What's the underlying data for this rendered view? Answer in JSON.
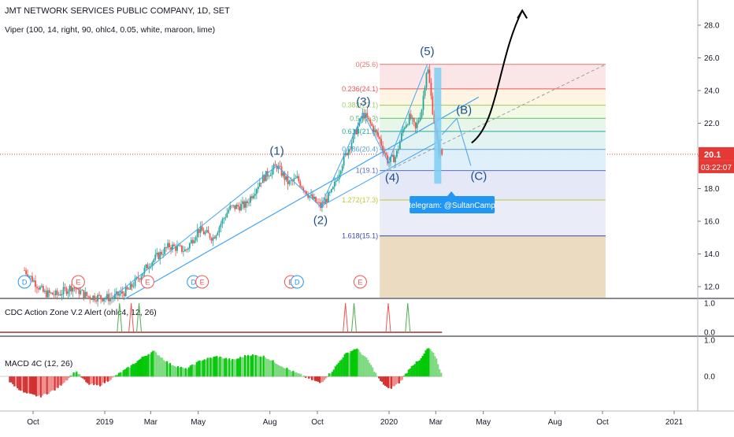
{
  "header": {
    "title": "JMT NETWORK SERVICES PUBLIC COMPANY, 1D, SET",
    "indicator": "Viper (100, 14, right, 90, ohlc4, 0.05, white, maroon, lime)"
  },
  "price_badge": {
    "value": "20.1",
    "countdown": "03:22:07",
    "color": "#e53935"
  },
  "colors": {
    "up": "#26a69a",
    "down": "#ef5350",
    "wave_line": "#42a5f5",
    "wave_label": "#1e4f8c",
    "label_bg": "#2196f3",
    "arrow": "#000000"
  },
  "chart_data": [
    {
      "type": "candlestick",
      "title": "JMT NETWORK SERVICES PUBLIC COMPANY, 1D, SET",
      "ylim": [
        11.3,
        29.5
      ],
      "y_ticks": [
        "28.0",
        "26.0",
        "24.0",
        "22.0",
        "20.0",
        "18.0",
        "16.0",
        "14.0",
        "12.0"
      ],
      "x_ticks": [
        "Oct",
        "2019",
        "Mar",
        "May",
        "Aug",
        "Oct",
        "2020",
        "Mar",
        "May",
        "Aug",
        "Oct",
        "2021"
      ],
      "last_price": 20.1,
      "price_path": [
        [
          "2018-09-20",
          13.0
        ],
        [
          "2018-10-01",
          12.4
        ],
        [
          "2018-10-15",
          11.6
        ],
        [
          "2018-11-01",
          11.5
        ],
        [
          "2018-11-20",
          12.0
        ],
        [
          "2018-12-10",
          11.4
        ],
        [
          "2019-01-10",
          11.3
        ],
        [
          "2019-02-01",
          11.8
        ],
        [
          "2019-03-01",
          13.5
        ],
        [
          "2019-03-25",
          14.5
        ],
        [
          "2019-04-15",
          14.2
        ],
        [
          "2019-05-01",
          15.5
        ],
        [
          "2019-05-20",
          15.0
        ],
        [
          "2019-06-10",
          16.8
        ],
        [
          "2019-07-01",
          17.0
        ],
        [
          "2019-07-20",
          18.5
        ],
        [
          "2019-08-10",
          19.4
        ],
        [
          "2019-08-25",
          18.3
        ],
        [
          "2019-09-05",
          18.6
        ],
        [
          "2019-09-20",
          17.6
        ],
        [
          "2019-10-05",
          16.9
        ],
        [
          "2019-10-20",
          17.8
        ],
        [
          "2019-11-01",
          19.5
        ],
        [
          "2019-11-15",
          21.0
        ],
        [
          "2019-11-29",
          22.6
        ],
        [
          "2019-12-10",
          21.8
        ],
        [
          "2019-12-20",
          21.0
        ],
        [
          "2019-12-31",
          19.6
        ],
        [
          "2020-01-10",
          20.0
        ],
        [
          "2020-01-20",
          21.8
        ],
        [
          "2020-01-28",
          22.4
        ],
        [
          "2020-02-04",
          21.6
        ],
        [
          "2020-02-12",
          22.9
        ],
        [
          "2020-02-19",
          25.6
        ],
        [
          "2020-02-26",
          22.8
        ],
        [
          "2020-03-04",
          20.4
        ],
        [
          "2020-03-09",
          20.1
        ]
      ],
      "fib_levels": [
        {
          "label": "0(25.6)",
          "value": 25.6,
          "color": "#e57373",
          "zone": "#fbe3e4"
        },
        {
          "label": "0.236(24.1)",
          "value": 24.1,
          "color": "#ef5350",
          "zone": "#fdf3e1"
        },
        {
          "label": "0.382(23.1)",
          "value": 23.1,
          "color": "#9ccc65",
          "zone": "#f1f8e2"
        },
        {
          "label": "0.5(22.3)",
          "value": 22.3,
          "color": "#66bb6a",
          "zone": "#e5f4e7"
        },
        {
          "label": "0.618(21.5)",
          "value": 21.5,
          "color": "#26a69a",
          "zone": "#e0f2ef"
        },
        {
          "label": "0.786(20.4)",
          "value": 20.4,
          "color": "#5c9fd6",
          "zone": "#dceefb"
        },
        {
          "label": "1(19.1)",
          "value": 19.1,
          "color": "#5c6bc0",
          "zone": "#e1e5f6"
        },
        {
          "label": "1.272(17.3)",
          "value": 17.3,
          "color": "#c0ca33",
          "zone": "#e8eaf6"
        },
        {
          "label": "1.618(15.1)",
          "value": 15.1,
          "color": "#3949ab",
          "zone": "#f1e6d6"
        }
      ],
      "fib_zone_bottom_color": "#e9d9be",
      "waves": [
        {
          "label": "(1)",
          "date": "2019-08-10",
          "value": 19.4
        },
        {
          "label": "(2)",
          "date": "2019-10-05",
          "value": 16.9
        },
        {
          "label": "(3)",
          "date": "2019-11-29",
          "value": 22.6
        },
        {
          "label": "(4)",
          "date": "2019-12-31",
          "value": 19.6
        },
        {
          "label": "(5)",
          "date": "2020-02-19",
          "value": 25.6
        },
        {
          "label": "(B)",
          "date": "2020-03-25",
          "value": 22.0
        },
        {
          "label": "(C)",
          "date": "2020-04-15",
          "value": 19.1
        }
      ],
      "annotation": "telegram: @SultanCamp",
      "events": [
        {
          "label": "D",
          "date": "2018-09-20",
          "color": "#2196f3"
        },
        {
          "label": "E",
          "date": "2018-11-28",
          "color": "#ef5350"
        },
        {
          "label": "E",
          "date": "2019-02-25",
          "color": "#ef5350"
        },
        {
          "label": "D",
          "date": "2019-04-25",
          "color": "#2196f3"
        },
        {
          "label": "E",
          "date": "2019-05-06",
          "color": "#ef5350"
        },
        {
          "label": "E",
          "date": "2019-08-28",
          "color": "#ef5350"
        },
        {
          "label": "D",
          "date": "2019-09-05",
          "color": "#2196f3"
        },
        {
          "label": "E",
          "date": "2019-11-25",
          "color": "#ef5350"
        }
      ]
    },
    {
      "type": "line",
      "title": "CDC Action Zone V.2 Alert (ohlc4, 12, 26)",
      "ylim": [
        0.0,
        1.0
      ],
      "y_ticks": [
        "1.0",
        "0.0"
      ],
      "spikes": [
        {
          "date": "2019-01-20",
          "color": "#4caf50"
        },
        {
          "date": "2019-02-04",
          "color": "#ef5350"
        },
        {
          "date": "2019-02-14",
          "color": "#4caf50"
        },
        {
          "date": "2019-11-06",
          "color": "#ef5350"
        },
        {
          "date": "2019-11-17",
          "color": "#4caf50"
        },
        {
          "date": "2019-12-31",
          "color": "#ef5350"
        },
        {
          "date": "2020-01-25",
          "color": "#4caf50"
        }
      ]
    },
    {
      "type": "bar",
      "title": "MACD 4C (12, 26)",
      "ylim": [
        -1.0,
        1.0
      ],
      "y_ticks": [
        "1.0",
        "0.0"
      ],
      "histogram": [
        [
          "2018-09-01",
          -0.15
        ],
        [
          "2018-09-20",
          -0.45
        ],
        [
          "2018-10-10",
          -0.55
        ],
        [
          "2018-10-30",
          -0.35
        ],
        [
          "2018-11-15",
          -0.05
        ],
        [
          "2018-11-25",
          0.15
        ],
        [
          "2018-12-10",
          -0.2
        ],
        [
          "2018-12-25",
          -0.25
        ],
        [
          "2019-01-10",
          -0.05
        ],
        [
          "2019-02-01",
          0.25
        ],
        [
          "2019-02-20",
          0.55
        ],
        [
          "2019-03-05",
          0.7
        ],
        [
          "2019-03-25",
          0.35
        ],
        [
          "2019-04-15",
          0.2
        ],
        [
          "2019-05-05",
          0.45
        ],
        [
          "2019-05-25",
          0.55
        ],
        [
          "2019-06-15",
          0.45
        ],
        [
          "2019-07-05",
          0.6
        ],
        [
          "2019-07-25",
          0.55
        ],
        [
          "2019-08-15",
          0.3
        ],
        [
          "2019-09-01",
          0.12
        ],
        [
          "2019-09-20",
          -0.05
        ],
        [
          "2019-10-05",
          -0.18
        ],
        [
          "2019-10-20",
          0.15
        ],
        [
          "2019-11-05",
          0.6
        ],
        [
          "2019-11-20",
          0.78
        ],
        [
          "2019-12-05",
          0.45
        ],
        [
          "2019-12-20",
          -0.1
        ],
        [
          "2020-01-01",
          -0.35
        ],
        [
          "2020-01-15",
          -0.15
        ],
        [
          "2020-01-30",
          0.3
        ],
        [
          "2020-02-10",
          0.45
        ],
        [
          "2020-02-20",
          0.8
        ],
        [
          "2020-03-01",
          0.55
        ],
        [
          "2020-03-09",
          0.02
        ]
      ]
    }
  ]
}
